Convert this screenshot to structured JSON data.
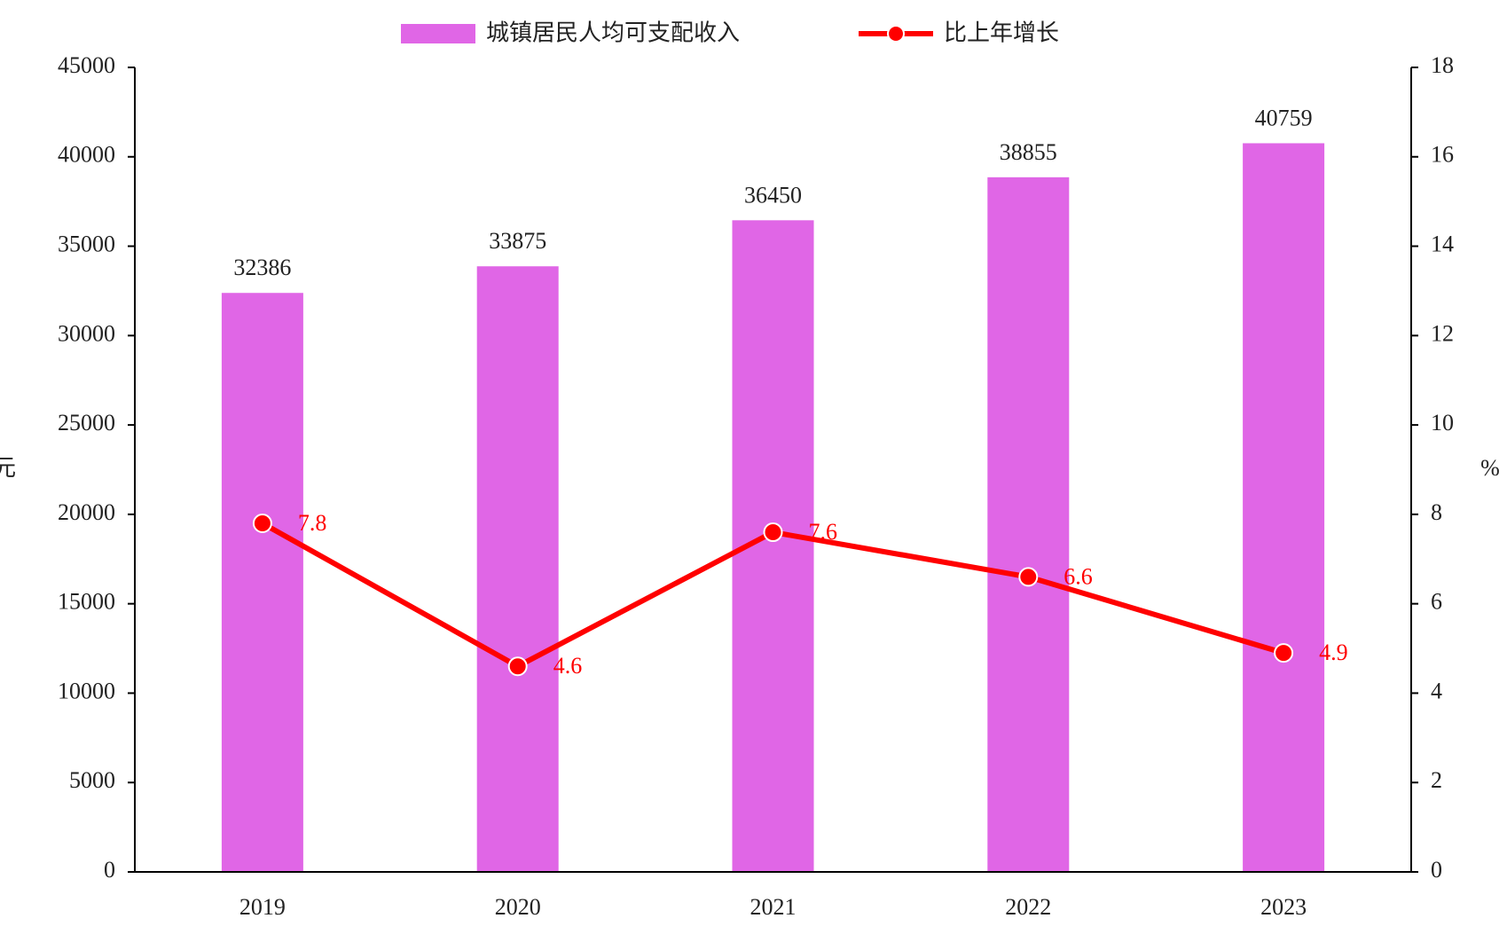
{
  "chart_data": {
    "type": "bar",
    "y_label": "元",
    "y2_label": "%",
    "categories": [
      "2019",
      "2020",
      "2021",
      "2022",
      "2023"
    ],
    "series": [
      {
        "name": "城镇居民人均可支配收入",
        "type": "bar",
        "color": "#e066e6",
        "values": [
          32386,
          33875,
          36450,
          38855,
          40759
        ]
      },
      {
        "name": "比上年增长",
        "type": "line",
        "axis": "y2",
        "color": "#ff0000",
        "values": [
          7.8,
          4.6,
          7.6,
          6.6,
          4.9
        ]
      }
    ],
    "ylim": [
      0,
      45000
    ],
    "yticks": [
      0,
      5000,
      10000,
      15000,
      20000,
      25000,
      30000,
      35000,
      40000,
      45000
    ],
    "y2lim": [
      0,
      18
    ],
    "y2ticks": [
      0,
      2,
      4,
      6,
      8,
      10,
      12,
      14,
      16,
      18
    ],
    "legend": "top"
  }
}
